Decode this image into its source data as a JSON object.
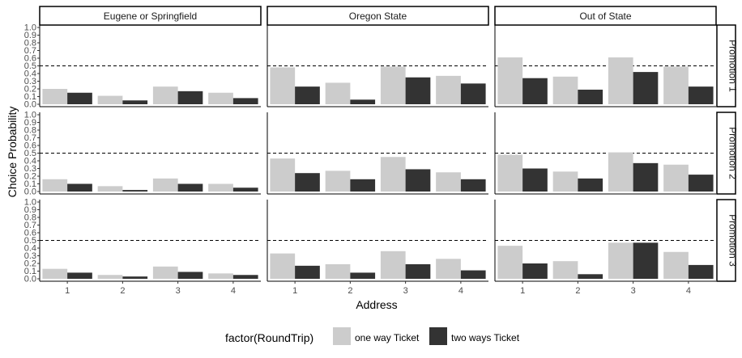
{
  "chart_data": {
    "type": "bar",
    "title": "",
    "xlabel": "Address",
    "ylabel": "Choice Probability",
    "ylim": [
      0,
      1
    ],
    "yticks": [
      0.0,
      0.1,
      0.2,
      0.3,
      0.4,
      0.5,
      0.6,
      0.7,
      0.8,
      0.9,
      1.0
    ],
    "ytick_labels": [
      "0.0",
      "0.1",
      "0.2",
      "0.3",
      "0.4",
      "0.5",
      "0.6",
      "0.7",
      "0.8",
      "0.9",
      "1.0"
    ],
    "categories": [
      "1",
      "2",
      "3",
      "4"
    ],
    "reference_line": 0.5,
    "grid": false,
    "facet_columns": [
      "Eugene or Springfield",
      "Oregon State",
      "Out of State"
    ],
    "facet_rows": [
      "Promotion 1",
      "Promotion 2",
      "Promotion 3"
    ],
    "legend": {
      "title": "factor(RoundTrip)",
      "position": "bottom",
      "entries": [
        "one way Ticket",
        "two ways Ticket"
      ],
      "colors": [
        "#cccccc",
        "#333333"
      ]
    },
    "panels": [
      {
        "row": "Promotion 1",
        "column": "Eugene or Springfield",
        "series": [
          {
            "name": "one way Ticket",
            "values": [
              0.2,
              0.11,
              0.23,
              0.15
            ]
          },
          {
            "name": "two ways Ticket",
            "values": [
              0.15,
              0.05,
              0.17,
              0.08
            ]
          }
        ]
      },
      {
        "row": "Promotion 1",
        "column": "Oregon State",
        "series": [
          {
            "name": "one way Ticket",
            "values": [
              0.48,
              0.28,
              0.49,
              0.37
            ]
          },
          {
            "name": "two ways Ticket",
            "values": [
              0.23,
              0.06,
              0.35,
              0.27
            ]
          }
        ]
      },
      {
        "row": "Promotion 1",
        "column": "Out of State",
        "series": [
          {
            "name": "one way Ticket",
            "values": [
              0.61,
              0.36,
              0.61,
              0.49
            ]
          },
          {
            "name": "two ways Ticket",
            "values": [
              0.34,
              0.19,
              0.42,
              0.23
            ]
          }
        ]
      },
      {
        "row": "Promotion 2",
        "column": "Eugene or Springfield",
        "series": [
          {
            "name": "one way Ticket",
            "values": [
              0.16,
              0.07,
              0.17,
              0.1
            ]
          },
          {
            "name": "two ways Ticket",
            "values": [
              0.1,
              0.02,
              0.1,
              0.05
            ]
          }
        ]
      },
      {
        "row": "Promotion 2",
        "column": "Oregon State",
        "series": [
          {
            "name": "one way Ticket",
            "values": [
              0.43,
              0.27,
              0.45,
              0.25
            ]
          },
          {
            "name": "two ways Ticket",
            "values": [
              0.24,
              0.16,
              0.29,
              0.16
            ]
          }
        ]
      },
      {
        "row": "Promotion 2",
        "column": "Out of State",
        "series": [
          {
            "name": "one way Ticket",
            "values": [
              0.48,
              0.26,
              0.51,
              0.35
            ]
          },
          {
            "name": "two ways Ticket",
            "values": [
              0.3,
              0.17,
              0.37,
              0.22
            ]
          }
        ]
      },
      {
        "row": "Promotion 3",
        "column": "Eugene or Springfield",
        "series": [
          {
            "name": "one way Ticket",
            "values": [
              0.13,
              0.05,
              0.16,
              0.07
            ]
          },
          {
            "name": "two ways Ticket",
            "values": [
              0.08,
              0.03,
              0.09,
              0.05
            ]
          }
        ]
      },
      {
        "row": "Promotion 3",
        "column": "Oregon State",
        "series": [
          {
            "name": "one way Ticket",
            "values": [
              0.33,
              0.19,
              0.36,
              0.26
            ]
          },
          {
            "name": "two ways Ticket",
            "values": [
              0.17,
              0.08,
              0.19,
              0.11
            ]
          }
        ]
      },
      {
        "row": "Promotion 3",
        "column": "Out of State",
        "series": [
          {
            "name": "one way Ticket",
            "values": [
              0.43,
              0.23,
              0.47,
              0.35
            ]
          },
          {
            "name": "two ways Ticket",
            "values": [
              0.2,
              0.06,
              0.47,
              0.18
            ]
          }
        ]
      }
    ]
  }
}
